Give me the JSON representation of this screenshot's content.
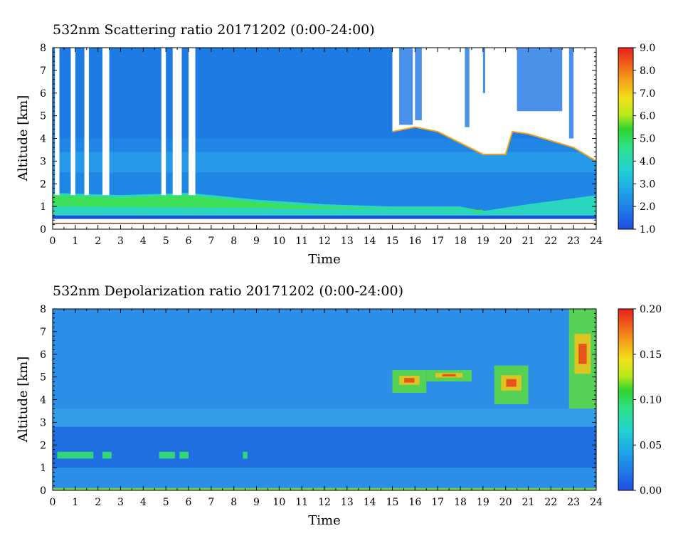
{
  "chart_data": [
    {
      "type": "heatmap",
      "title": "532nm Scattering ratio  20171202 (0:00-24:00)",
      "xlabel": "Time",
      "ylabel": "Altitude [km]",
      "xlim": [
        0,
        24
      ],
      "ylim": [
        0,
        8
      ],
      "x_ticks": [
        "0",
        "1",
        "2",
        "3",
        "4",
        "5",
        "6",
        "7",
        "8",
        "9",
        "10",
        "11",
        "12",
        "13",
        "14",
        "15",
        "16",
        "17",
        "18",
        "19",
        "20",
        "21",
        "22",
        "23",
        "24"
      ],
      "y_ticks": [
        "0",
        "1",
        "2",
        "3",
        "4",
        "5",
        "6",
        "7",
        "8"
      ],
      "colorbar": {
        "range": [
          1.0,
          9.0
        ],
        "ticks": [
          "1.0",
          "2.0",
          "3.0",
          "4.0",
          "5.0",
          "6.0",
          "7.0",
          "8.0",
          "9.0"
        ]
      },
      "features": {
        "aerosol_layer_top_km": [
          {
            "t": 0,
            "alt": 1.6
          },
          {
            "t": 3,
            "alt": 1.5
          },
          {
            "t": 6,
            "alt": 1.6
          },
          {
            "t": 9,
            "alt": 1.3
          },
          {
            "t": 12,
            "alt": 1.1
          },
          {
            "t": 15,
            "alt": 1.0
          },
          {
            "t": 18,
            "alt": 1.0
          },
          {
            "t": 19,
            "alt": 0.8
          },
          {
            "t": 21,
            "alt": 1.1
          },
          {
            "t": 24,
            "alt": 1.5
          }
        ],
        "cloud_base_km": [
          {
            "t": 15,
            "alt": 4.3
          },
          {
            "t": 16,
            "alt": 4.5
          },
          {
            "t": 17,
            "alt": 4.3
          },
          {
            "t": 18,
            "alt": 3.8
          },
          {
            "t": 19,
            "alt": 3.3
          },
          {
            "t": 20,
            "alt": 3.3
          },
          {
            "t": 20.3,
            "alt": 4.3
          },
          {
            "t": 21,
            "alt": 4.2
          },
          {
            "t": 22,
            "alt": 3.9
          },
          {
            "t": 23,
            "alt": 3.6
          },
          {
            "t": 24,
            "alt": 3.0
          }
        ],
        "missing_data_times": [
          {
            "from": 0.1,
            "to": 0.3
          },
          {
            "from": 0.8,
            "to": 1.0
          },
          {
            "from": 1.4,
            "to": 1.6
          },
          {
            "from": 2.2,
            "to": 2.5
          },
          {
            "from": 4.8,
            "to": 5.0
          },
          {
            "from": 5.3,
            "to": 5.7
          },
          {
            "from": 6.0,
            "to": 6.3
          }
        ]
      }
    },
    {
      "type": "heatmap",
      "title": "532nm Depolarization ratio  20171202 (0:00-24:00)",
      "xlabel": "Time",
      "ylabel": "Altitude [km]",
      "xlim": [
        0,
        24
      ],
      "ylim": [
        0,
        8
      ],
      "x_ticks": [
        "0",
        "1",
        "2",
        "3",
        "4",
        "5",
        "6",
        "7",
        "8",
        "9",
        "10",
        "11",
        "12",
        "13",
        "14",
        "15",
        "16",
        "17",
        "18",
        "19",
        "20",
        "21",
        "22",
        "23",
        "24"
      ],
      "y_ticks": [
        "0",
        "1",
        "2",
        "3",
        "4",
        "5",
        "6",
        "7",
        "8"
      ],
      "colorbar": {
        "range": [
          0.0,
          0.2
        ],
        "ticks": [
          "0.00",
          "0.05",
          "0.10",
          "0.15",
          "0.20"
        ]
      },
      "features": {
        "high_depol_regions": [
          {
            "t_from": 15,
            "t_to": 16.5,
            "alt_from": 4.3,
            "alt_to": 5.3,
            "value": 0.15
          },
          {
            "t_from": 16.5,
            "t_to": 18.5,
            "alt_from": 4.8,
            "alt_to": 5.3,
            "value": 0.18
          },
          {
            "t_from": 19.5,
            "t_to": 21,
            "alt_from": 3.8,
            "alt_to": 5.5,
            "value": 0.12
          },
          {
            "t_from": 22.8,
            "t_to": 24,
            "alt_from": 3.6,
            "alt_to": 8.0,
            "value": 0.16
          }
        ],
        "low_level_layer_km": 1.5
      }
    }
  ]
}
